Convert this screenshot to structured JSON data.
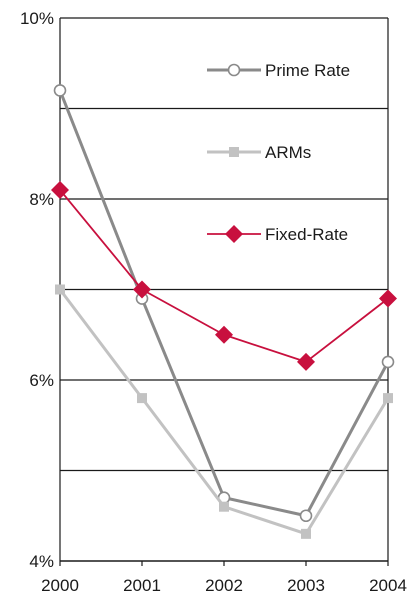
{
  "chart_data": {
    "type": "line",
    "x": [
      2000,
      2001,
      2002,
      2003,
      2004
    ],
    "xticks": [
      "2000",
      "2001",
      "2002",
      "2003",
      "2004"
    ],
    "ylim": [
      4,
      10
    ],
    "yticks": [
      {
        "value": 4,
        "label": "4%"
      },
      {
        "value": 6,
        "label": "6%"
      },
      {
        "value": 8,
        "label": "8%"
      },
      {
        "value": 10,
        "label": "10%"
      }
    ],
    "gridlines": [
      5,
      6,
      7,
      8,
      9
    ],
    "legend_position": "top-right, inside plot",
    "series": [
      {
        "name": "Prime Rate",
        "color": "#8a8a8a",
        "marker": "open-circle",
        "values": [
          9.2,
          6.9,
          4.7,
          4.5,
          6.2
        ]
      },
      {
        "name": "ARMs",
        "color": "#c2c2c2",
        "marker": "square",
        "values": [
          7.0,
          5.8,
          4.6,
          4.3,
          5.8
        ]
      },
      {
        "name": "Fixed-Rate",
        "color": "#c8103e",
        "marker": "diamond",
        "values": [
          8.1,
          7.0,
          6.5,
          6.2,
          6.9
        ]
      }
    ]
  }
}
